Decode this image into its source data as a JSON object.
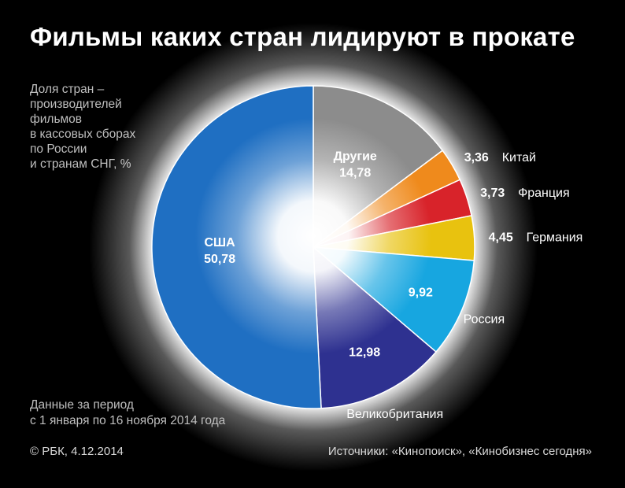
{
  "header": {
    "title": "Фильмы каких стран лидируют в прокате",
    "subtitle": [
      "Доля стран –",
      "производителей",
      "фильмов",
      "в кассовых сборах",
      "по России",
      "и странам СНГ, %"
    ]
  },
  "footer": {
    "period": [
      "Данные за период",
      "с 1 января по 16 ноября 2014 года"
    ],
    "copyright": "© РБК, 4.12.2014",
    "sources": "Источники:  «Кинопоиск», «Кинобизнес сегодня»"
  },
  "chart_data": {
    "type": "pie",
    "start": "12 o'clock, clockwise",
    "slices": [
      {
        "label": "Другие",
        "value": 14.78,
        "display": "14,78",
        "color": "#8c8c8c",
        "label_pos": "inside"
      },
      {
        "label": "Китай",
        "value": 3.36,
        "display": "3,36",
        "color": "#ef8a1c",
        "label_pos": "outside"
      },
      {
        "label": "Франция",
        "value": 3.73,
        "display": "3,73",
        "color": "#d8232a",
        "label_pos": "outside"
      },
      {
        "label": "Германия",
        "value": 4.45,
        "display": "4,45",
        "color": "#e8c20f",
        "label_pos": "outside"
      },
      {
        "label": "Россия",
        "value": 9.92,
        "display": "9,92",
        "color": "#17a6e0",
        "label_pos": "split"
      },
      {
        "label": "Великобритания",
        "value": 12.98,
        "display": "12,98",
        "color": "#2e3190",
        "label_pos": "split"
      },
      {
        "label": "США",
        "value": 50.78,
        "display": "50,78",
        "color": "#1f6fc2",
        "label_pos": "inside"
      }
    ]
  }
}
